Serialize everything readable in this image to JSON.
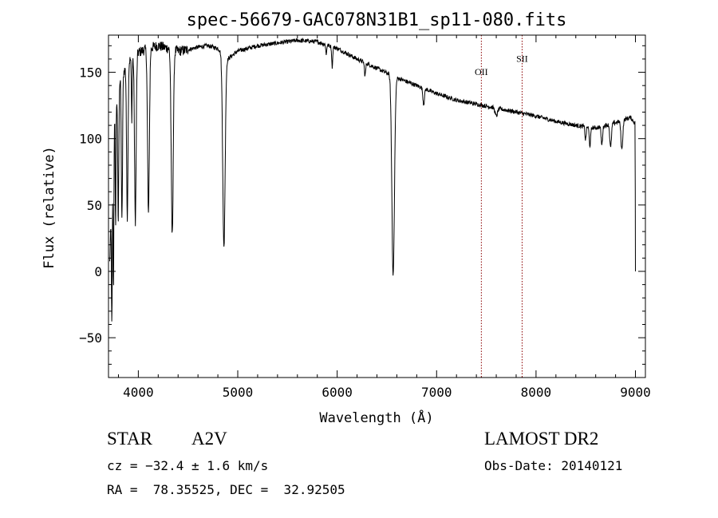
{
  "chart_data": {
    "type": "line",
    "title": "spec-56679-GAC078N31B1_sp11-080.fits",
    "xlabel": "Wavelength (Å)",
    "ylabel": "Flux (relative)",
    "xlim": [
      3700,
      9100
    ],
    "ylim": [
      -80,
      178
    ],
    "xticks": [
      4000,
      5000,
      6000,
      7000,
      8000,
      9000
    ],
    "yticks": [
      -50,
      0,
      50,
      100,
      150
    ],
    "xtick_labels": [
      "4000",
      "5000",
      "6000",
      "7000",
      "8000",
      "9000"
    ],
    "ytick_labels": [
      "−50",
      "0",
      "50",
      "100",
      "150"
    ],
    "grid": false,
    "line_color": "#000000",
    "continuum": {
      "x": [
        3700,
        3760,
        3820,
        3900,
        4000,
        4100,
        4200,
        4300,
        4400,
        4500,
        4600,
        4700,
        4800,
        4900,
        5000,
        5200,
        5400,
        5600,
        5800,
        6000,
        6200,
        6400,
        6600,
        6800,
        7000,
        7200,
        7400,
        7600,
        7800,
        8000,
        8200,
        8400,
        8600,
        8800,
        8950,
        8990
      ],
      "y": [
        50,
        120,
        145,
        158,
        165,
        168,
        170,
        168,
        166,
        167,
        169,
        170,
        168,
        160,
        166,
        170,
        172,
        174,
        173,
        168,
        160,
        153,
        146,
        140,
        134,
        129,
        126,
        123,
        120,
        117,
        113,
        110,
        108,
        112,
        116,
        112
      ]
    },
    "absorption_lines": [
      {
        "x": 3734,
        "depth": 100,
        "width": 4
      },
      {
        "x": 3750,
        "depth": 110,
        "width": 4
      },
      {
        "x": 3771,
        "depth": 90,
        "width": 4
      },
      {
        "x": 3798,
        "depth": 100,
        "width": 5
      },
      {
        "x": 3835,
        "depth": 110,
        "width": 6
      },
      {
        "x": 3889,
        "depth": 115,
        "width": 7
      },
      {
        "x": 3934,
        "depth": 45,
        "width": 4
      },
      {
        "x": 3970,
        "depth": 125,
        "width": 8
      },
      {
        "x": 4102,
        "depth": 125,
        "width": 9
      },
      {
        "x": 4341,
        "depth": 140,
        "width": 10
      },
      {
        "x": 4861,
        "depth": 145,
        "width": 12
      },
      {
        "x": 6563,
        "depth": 150,
        "width": 13
      },
      {
        "x": 5890,
        "depth": 8,
        "width": 4
      },
      {
        "x": 5950,
        "depth": 15,
        "width": 5
      },
      {
        "x": 6280,
        "depth": 10,
        "width": 6
      },
      {
        "x": 6870,
        "depth": 12,
        "width": 8
      },
      {
        "x": 7600,
        "depth": 6,
        "width": 12
      },
      {
        "x": 8498,
        "depth": 10,
        "width": 6
      },
      {
        "x": 8542,
        "depth": 14,
        "width": 7
      },
      {
        "x": 8662,
        "depth": 14,
        "width": 7
      },
      {
        "x": 8750,
        "depth": 18,
        "width": 8
      },
      {
        "x": 8863,
        "depth": 22,
        "width": 9
      }
    ],
    "marker_lines": [
      {
        "label": "OII",
        "x": 7450,
        "label_y": 148,
        "color": "#8b0000"
      },
      {
        "label": "SII",
        "x": 7860,
        "label_y": 158,
        "color": "#8b0000"
      }
    ]
  },
  "info": {
    "object_type": "STAR",
    "subclass": "A2V",
    "cz": "cz = −32.4 ± 1.6 km/s",
    "coords": "RA =  78.35525, DEC =  32.92505",
    "survey": "LAMOST DR2",
    "obs_date": "Obs-Date: 20140121"
  }
}
